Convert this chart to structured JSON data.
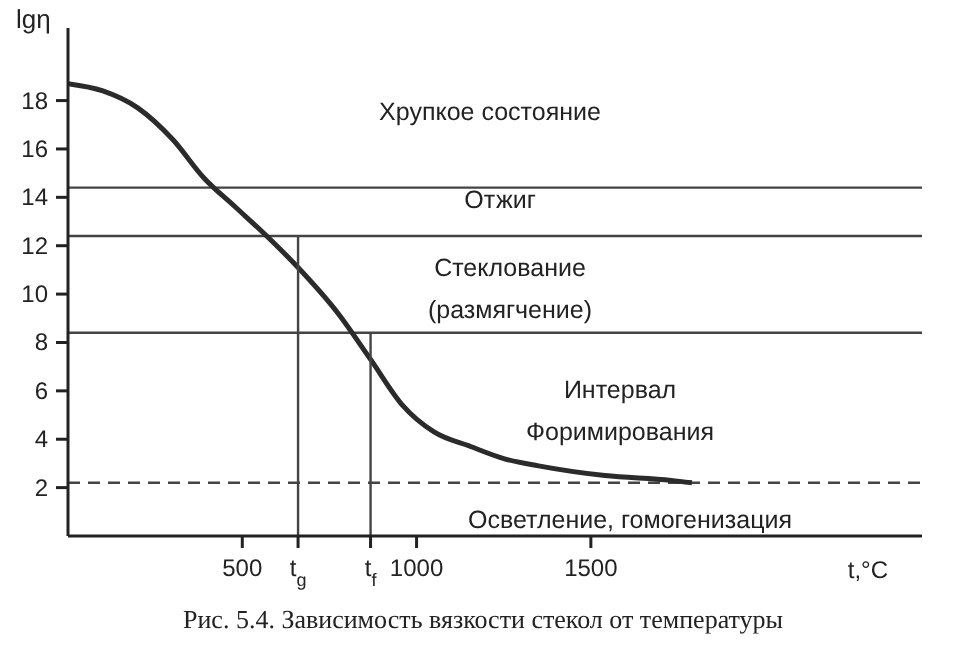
{
  "chart_data": {
    "type": "line",
    "title": "Рис. 5.4. Зависимость вязкости стекол от температуры",
    "xlabel": "t,°C",
    "ylabel": "lgη",
    "xlim": [
      0,
      2450
    ],
    "ylim": [
      0,
      21
    ],
    "xticks": [
      500,
      {
        "value": 660,
        "label": "t$_{g}$"
      },
      {
        "value": 868,
        "label": "t$_{f}$"
      },
      1000,
      1500
    ],
    "yticks": [
      2,
      4,
      6,
      8,
      10,
      12,
      14,
      16,
      18
    ],
    "marker": "none",
    "series": [
      {
        "color": "#2b2b2b",
        "x": [
          0,
          100,
          200,
          300,
          390,
          480,
          570,
          660,
          775,
          868,
          960,
          1050,
          1155,
          1250,
          1350,
          1540,
          1730,
          1790
        ],
        "values": [
          18.7,
          18.4,
          17.7,
          16.4,
          14.8,
          13.6,
          12.4,
          11.1,
          9.2,
          7.3,
          5.4,
          4.3,
          3.7,
          3.2,
          2.9,
          2.5,
          2.3,
          2.2
        ]
      },
      {
        "color": "#444444",
        "x": [
          660,
          660
        ],
        "values": [
          0,
          12.4
        ]
      },
      {
        "color": "#444444",
        "x": [
          868,
          868
        ],
        "values": [
          0,
          8.4
        ]
      }
    ],
    "ref_lines": [
      {
        "axis": "y",
        "value": 14.4,
        "color": "#444444",
        "line_style": "solid"
      },
      {
        "axis": "y",
        "value": 12.4,
        "color": "#444444",
        "line_style": "solid"
      },
      {
        "axis": "y",
        "value": 8.4,
        "color": "#444444",
        "line_style": "solid"
      },
      {
        "axis": "y",
        "value": 2.2,
        "color": "#444444",
        "line_style": "dashed"
      }
    ],
    "annotations": [
      "Хрупкое состояние",
      "Отжиг",
      "Стеклование\n(размягчение)",
      "Интервал\nФоримирования",
      "Осветление, гомогенизация"
    ]
  }
}
